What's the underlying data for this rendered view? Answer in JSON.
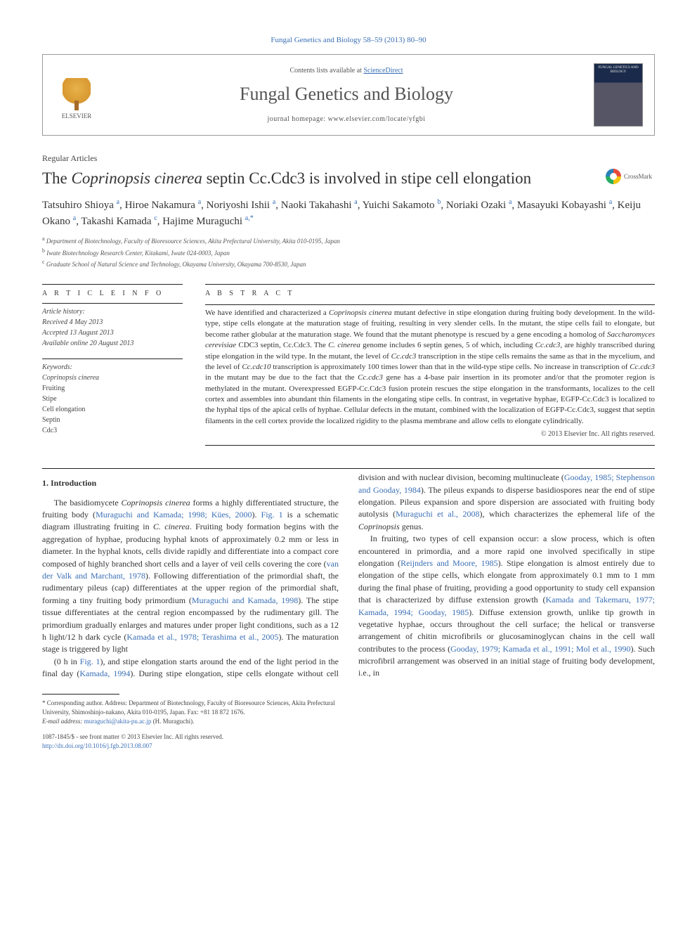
{
  "header": {
    "citation": "Fungal Genetics and Biology 58–59 (2013) 80–90",
    "contents_prefix": "Contents lists available at ",
    "contents_link": "ScienceDirect",
    "journal_title": "Fungal Genetics and Biology",
    "homepage_label": "journal homepage: www.elsevier.com/locate/yfgbi",
    "publisher_name": "ELSEVIER",
    "cover_text": "FUNGAL GENETICS AND BIOLOGY"
  },
  "article": {
    "section": "Regular Articles",
    "title_pre": "The ",
    "title_ital": "Coprinopsis cinerea",
    "title_post": " septin Cc.Cdc3 is involved in stipe cell elongation",
    "crossmark": "CrossMark"
  },
  "authors_html": "Tatsuhiro Shioya <sup class='sup'>a</sup>, Hiroe Nakamura <sup class='sup'>a</sup>, Noriyoshi Ishii <sup class='sup'>a</sup>, Naoki Takahashi <sup class='sup'>a</sup>, Yuichi Sakamoto <sup class='sup'>b</sup>, Noriaki Ozaki <sup class='sup'>a</sup>, Masayuki Kobayashi <sup class='sup'>a</sup>, Keiju Okano <sup class='sup'>a</sup>, Takashi Kamada <sup class='sup'>c</sup>, Hajime Muraguchi <sup class='sup corr'>a,*</sup>",
  "affiliations": [
    {
      "key": "a",
      "text": "Department of Biotechnology, Faculty of Bioresource Sciences, Akita Prefectural University, Akita 010-0195, Japan"
    },
    {
      "key": "b",
      "text": "Iwate Biotechnology Research Center, Kitakami, Iwate 024-0003, Japan"
    },
    {
      "key": "c",
      "text": "Graduate School of Natural Science and Technology, Okayama University, Okayama 700-8530, Japan"
    }
  ],
  "artinfo": {
    "head": "A R T I C L E   I N F O",
    "history_label": "Article history:",
    "history": [
      "Received 4 May 2013",
      "Accepted 13 August 2013",
      "Available online 20 August 2013"
    ],
    "keywords_label": "Keywords:",
    "keywords": [
      "Coprinopsis cinerea",
      "Fruiting",
      "Stipe",
      "Cell elongation",
      "Septin",
      "Cdc3"
    ]
  },
  "abstract": {
    "head": "A B S T R A C T",
    "body": "We have identified and characterized a Coprinopsis cinerea mutant defective in stipe elongation during fruiting body development. In the wild-type, stipe cells elongate at the maturation stage of fruiting, resulting in very slender cells. In the mutant, the stipe cells fail to elongate, but become rather globular at the maturation stage. We found that the mutant phenotype is rescued by a gene encoding a homolog of Saccharomyces cerevisiae CDC3 septin, Cc.Cdc3. The C. cinerea genome includes 6 septin genes, 5 of which, including Cc.cdc3, are highly transcribed during stipe elongation in the wild type. In the mutant, the level of Cc.cdc3 transcription in the stipe cells remains the same as that in the mycelium, and the level of Cc.cdc10 transcription is approximately 100 times lower than that in the wild-type stipe cells. No increase in transcription of Cc.cdc3 in the mutant may be due to the fact that the Cc.cdc3 gene has a 4-base pair insertion in its promoter and/or that the promoter region is methylated in the mutant. Overexpressed EGFP-Cc.Cdc3 fusion protein rescues the stipe elongation in the transformants, localizes to the cell cortex and assembles into abundant thin filaments in the elongating stipe cells. In contrast, in vegetative hyphae, EGFP-Cc.Cdc3 is localized to the hyphal tips of the apical cells of hyphae. Cellular defects in the mutant, combined with the localization of EGFP-Cc.Cdc3, suggest that septin filaments in the cell cortex provide the localized rigidity to the plasma membrane and allow cells to elongate cylindrically.",
    "copyright": "© 2013 Elsevier Inc. All rights reserved."
  },
  "body": {
    "section1_title": "1. Introduction",
    "para1": "The basidiomycete Coprinopsis cinerea forms a highly differentiated structure, the fruiting body (Muraguchi and Kamada; 1998; Kües, 2000). Fig. 1 is a schematic diagram illustrating fruiting in C. cinerea. Fruiting body formation begins with the aggregation of hyphae, producing hyphal knots of approximately 0.2 mm or less in diameter. In the hyphal knots, cells divide rapidly and differentiate into a compact core composed of highly branched short cells and a layer of veil cells covering the core (van der Valk and Marchant, 1978). Following differentiation of the primordial shaft, the rudimentary pileus (cap) differentiates at the upper region of the primordial shaft, forming a tiny fruiting body primordium (Muraguchi and Kamada, 1998). The stipe tissue differentiates at the central region encompassed by the rudimentary gill. The primordium gradually enlarges and matures under proper light conditions, such as a 12 h light/12 h dark cycle (Kamada et al., 1978; Terashima et al., 2005). The maturation stage is triggered by light",
    "para2": "(0 h in Fig. 1), and stipe elongation starts around the end of the light period in the final day (Kamada, 1994). During stipe elongation, stipe cells elongate without cell division and with nuclear division, becoming multinucleate (Gooday, 1985; Stephenson and Gooday, 1984). The pileus expands to disperse basidiospores near the end of stipe elongation. Pileus expansion and spore dispersion are associated with fruiting body autolysis (Muraguchi et al., 2008), which characterizes the ephemeral life of the Coprinopsis genus.",
    "para3": "In fruiting, two types of cell expansion occur: a slow process, which is often encountered in primordia, and a more rapid one involved specifically in stipe elongation (Reijnders and Moore, 1985). Stipe elongation is almost entirely due to elongation of the stipe cells, which elongate from approximately 0.1 mm to 1 mm during the final phase of fruiting, providing a good opportunity to study cell expansion that is characterized by diffuse extension growth (Kamada and Takemaru, 1977; Kamada, 1994; Gooday, 1985). Diffuse extension growth, unlike tip growth in vegetative hyphae, occurs throughout the cell surface; the helical or transverse arrangement of chitin microfibrils or glucosaminoglycan chains in the cell wall contributes to the process (Gooday, 1979; Kamada et al., 1991; Mol et al., 1990). Such microfibril arrangement was observed in an initial stage of fruiting body development, i.e., in"
  },
  "footer": {
    "corresponding": "* Corresponding author. Address: Department of Biotechnology, Faculty of Bioresource Sciences, Akita Prefectural University, Shimoshinjo-nakano, Akita 010-0195, Japan. Fax: +81 18 872 1676.",
    "email_label": "E-mail address: ",
    "email": "muraguchi@akita-pu.ac.jp",
    "email_suffix": " (H. Muraguchi).",
    "issn_line": "1087-1845/$ - see front matter © 2013 Elsevier Inc. All rights reserved.",
    "doi": "http://dx.doi.org/10.1016/j.fgb.2013.08.007"
  },
  "colors": {
    "link": "#3a6fb5",
    "text": "#333333",
    "muted": "#555555",
    "rule": "#222222"
  }
}
